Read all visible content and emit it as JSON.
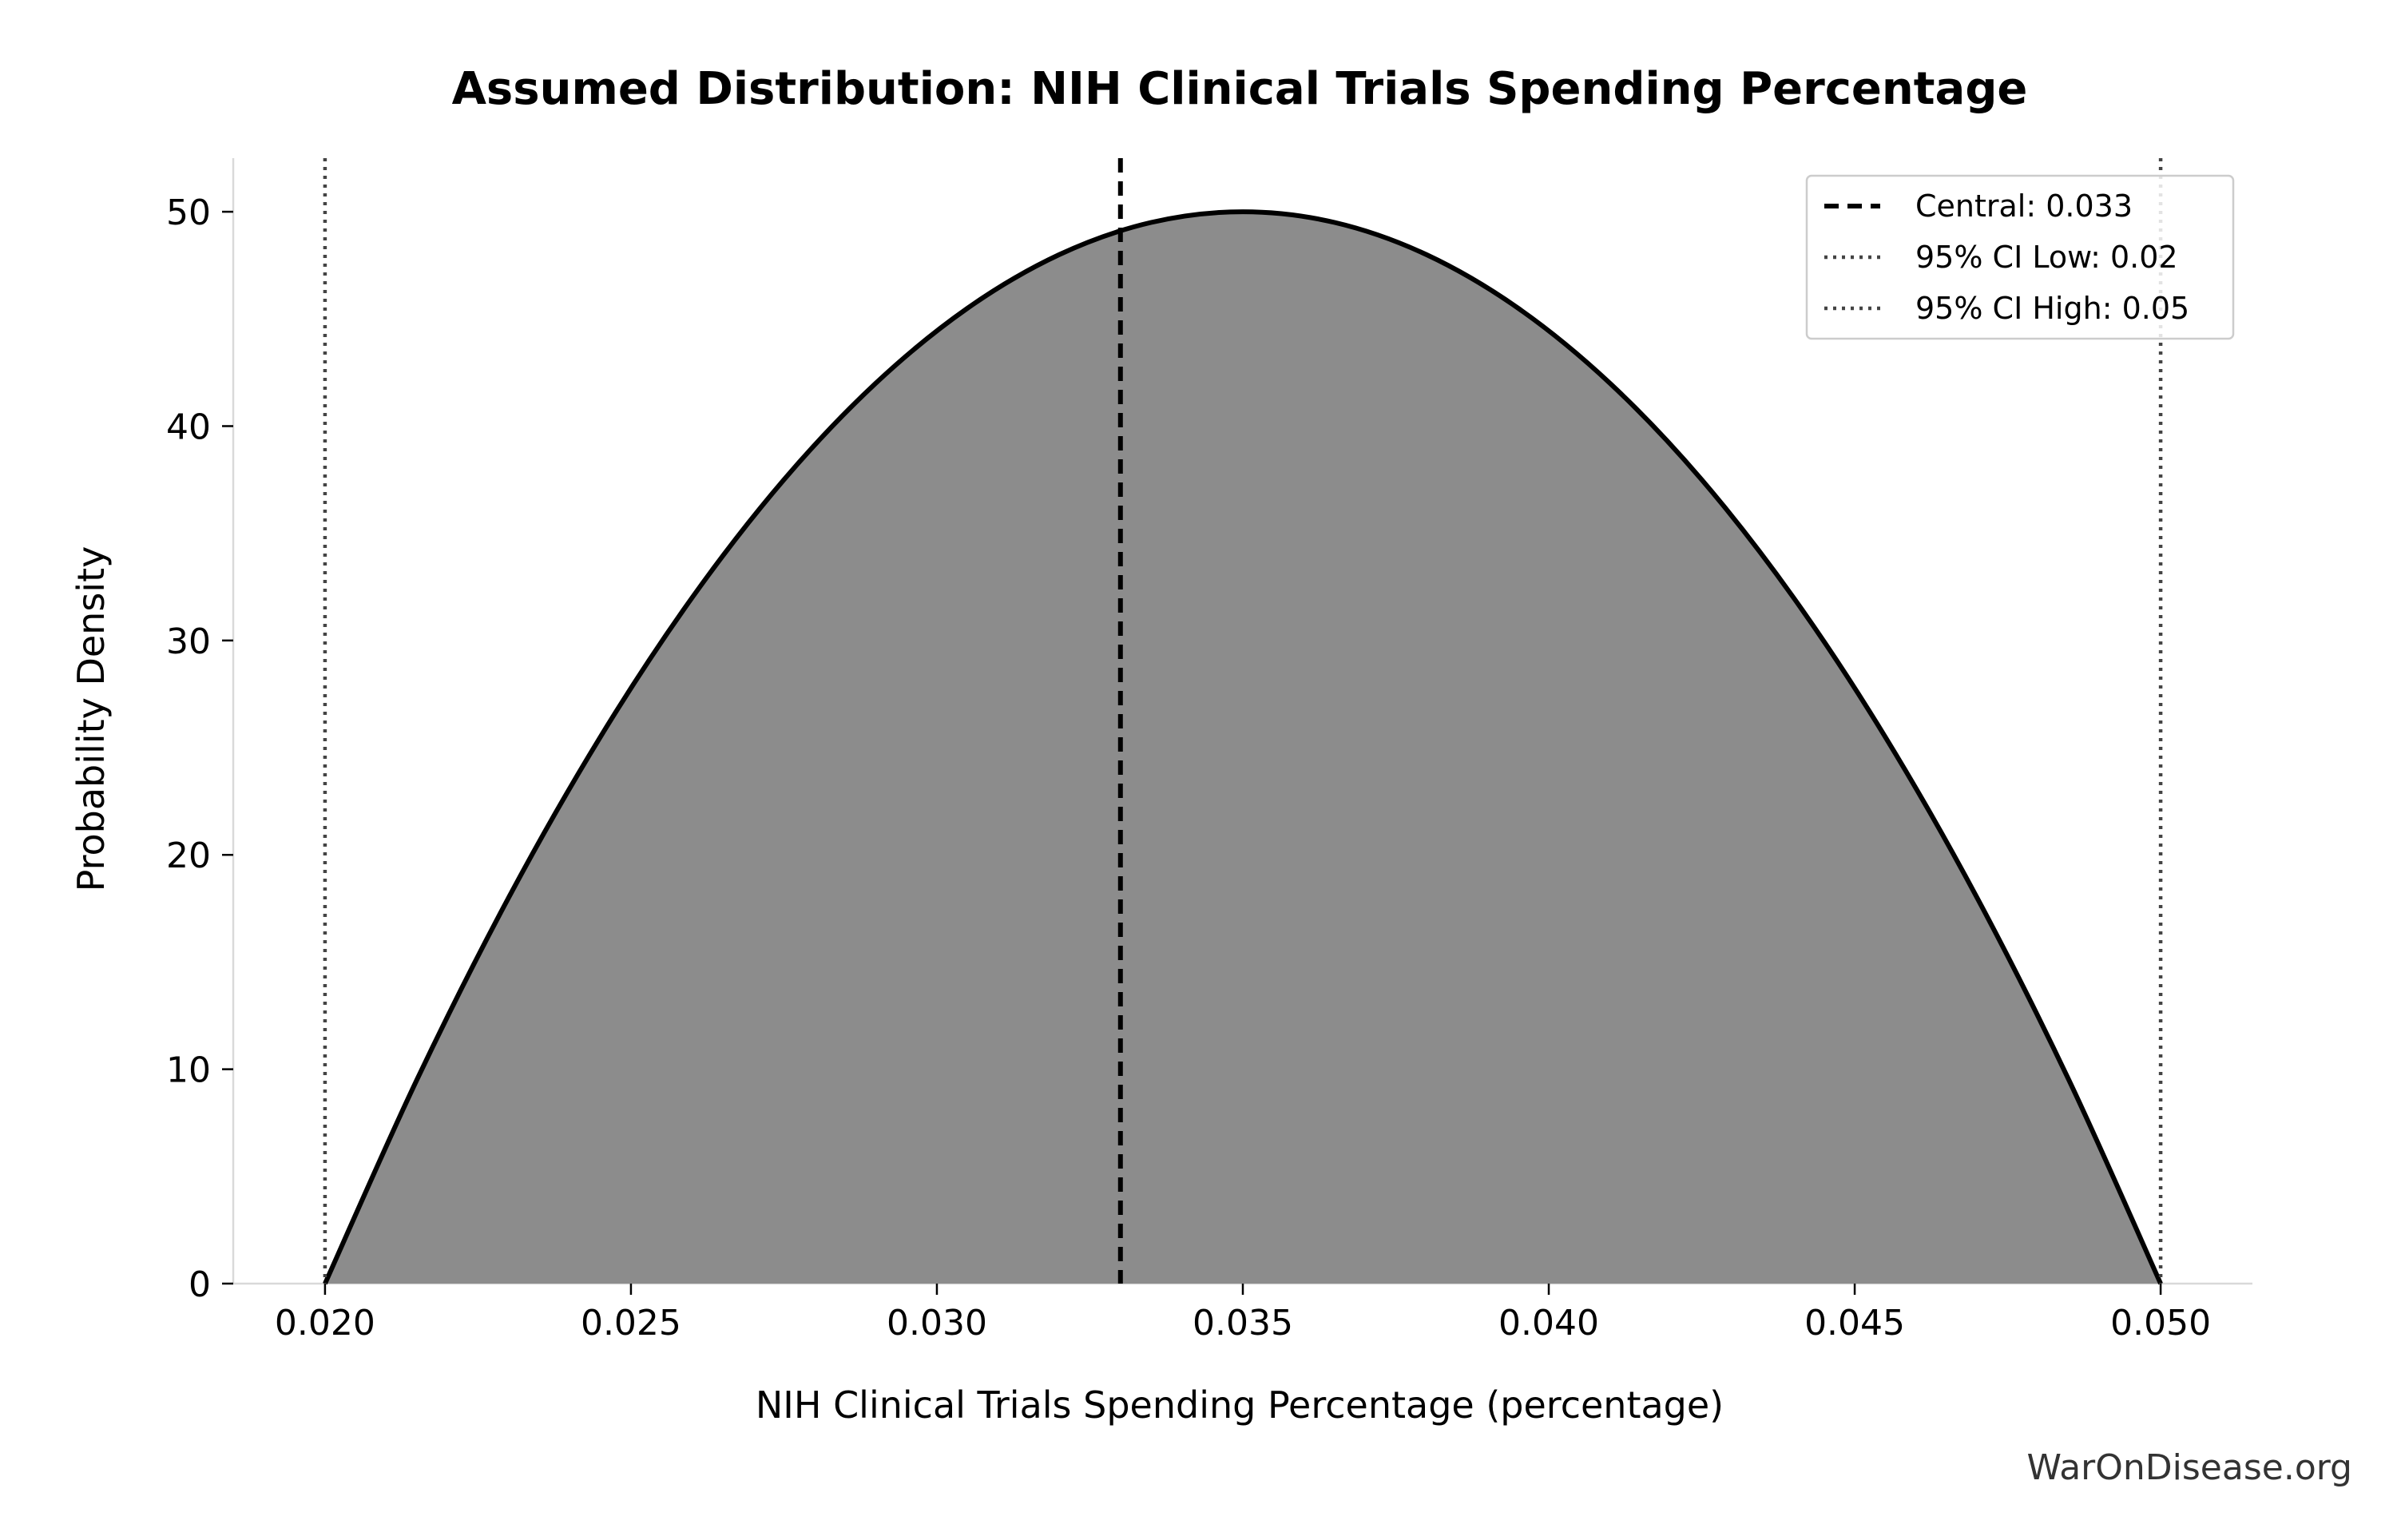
{
  "chart_data": {
    "type": "area",
    "title": "Assumed Distribution: NIH Clinical Trials Spending Percentage",
    "xlabel": "NIH Clinical Trials Spending Percentage (percentage)",
    "ylabel": "Probability Density",
    "xlim": [
      0.0185,
      0.0515
    ],
    "ylim": [
      0,
      52.5
    ],
    "x_ticks": [
      0.02,
      0.025,
      0.03,
      0.035,
      0.04,
      0.045,
      0.05
    ],
    "x_tick_labels": [
      "0.020",
      "0.025",
      "0.030",
      "0.035",
      "0.040",
      "0.045",
      "0.050"
    ],
    "y_ticks": [
      0,
      10,
      20,
      30,
      40,
      50
    ],
    "y_tick_labels": [
      "0",
      "10",
      "20",
      "30",
      "40",
      "50"
    ],
    "grid": false,
    "legend_position": "top-right",
    "series": [
      {
        "style": "filled-curve",
        "fill_color": "#8c8c8c",
        "line_color": "#000000",
        "x": [
          0.02,
          0.0215,
          0.023,
          0.0245,
          0.026,
          0.0275,
          0.029,
          0.0305,
          0.032,
          0.0335,
          0.035,
          0.0365,
          0.038,
          0.0395,
          0.041,
          0.0425,
          0.044,
          0.0455,
          0.047,
          0.0485,
          0.05
        ],
        "y": [
          0,
          9.5,
          18.0,
          25.5,
          32.0,
          37.5,
          42.0,
          45.5,
          48.0,
          49.5,
          50.0,
          49.5,
          48.0,
          45.5,
          42.0,
          37.5,
          32.0,
          25.5,
          18.0,
          9.5,
          0
        ]
      }
    ],
    "reference_lines": [
      {
        "name": "Central: 0.033",
        "x": 0.033,
        "style": "dashed",
        "color": "#000000"
      },
      {
        "name": "95% CI Low: 0.02",
        "x": 0.02,
        "style": "dotted",
        "color": "#444444"
      },
      {
        "name": "95% CI High: 0.05",
        "x": 0.05,
        "style": "dotted",
        "color": "#444444"
      }
    ]
  },
  "watermark": "WarOnDisease.org"
}
